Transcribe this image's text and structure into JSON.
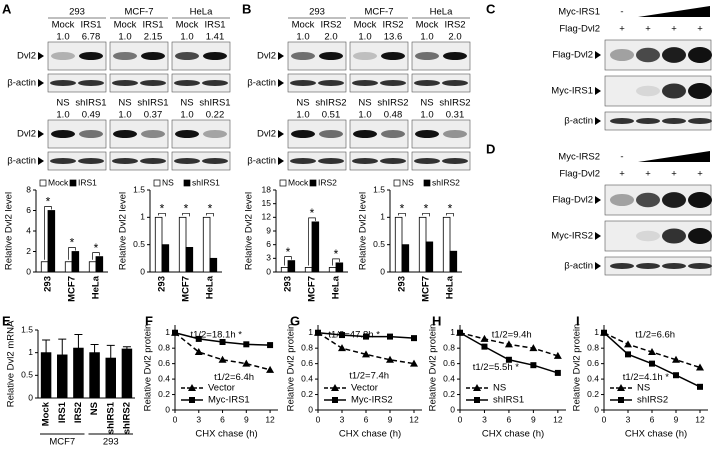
{
  "panels": {
    "A": {
      "label": "A",
      "blot1": {
        "groups": [
          {
            "name": "293",
            "lanes": [
              "Mock",
              "IRS1"
            ],
            "ratios": [
              "1.0",
              "6.78"
            ]
          },
          {
            "name": "MCF-7",
            "lanes": [
              "Mock",
              "IRS1"
            ],
            "ratios": [
              "1.0",
              "2.15"
            ]
          },
          {
            "name": "HeLa",
            "lanes": [
              "Mock",
              "IRS1"
            ],
            "ratios": [
              "1.0",
              "1.41"
            ]
          }
        ],
        "rows": [
          "Dvl2",
          "β-actin"
        ]
      },
      "blot2": {
        "groups": [
          {
            "lanes": [
              "NS",
              "shIRS1"
            ],
            "ratios": [
              "1.0",
              "0.49"
            ]
          },
          {
            "lanes": [
              "NS",
              "shIRS1"
            ],
            "ratios": [
              "1.0",
              "0.37"
            ]
          },
          {
            "lanes": [
              "NS",
              "shIRS1"
            ],
            "ratios": [
              "1.0",
              "0.22"
            ]
          }
        ],
        "rows": [
          "Dvl2",
          "β-actin"
        ]
      },
      "charts": [
        {
          "type": "bar",
          "ylabel": "Relative Dvl2 level",
          "categories": [
            "293",
            "MCF7",
            "HeLa"
          ],
          "series": [
            {
              "name": "Mock",
              "color": "#ffffff",
              "values": [
                1,
                1,
                1
              ]
            },
            {
              "name": "IRS1",
              "color": "#000000",
              "values": [
                6,
                2,
                1.5
              ]
            }
          ],
          "ylim": [
            0,
            8
          ],
          "yticks": [
            0,
            2,
            4,
            6,
            8
          ],
          "annotations": [
            "*",
            "*",
            "*"
          ]
        },
        {
          "type": "bar",
          "ylabel": "Relative Dvl2 level",
          "categories": [
            "293",
            "MCF7",
            "HeLa"
          ],
          "series": [
            {
              "name": "NS",
              "color": "#ffffff",
              "values": [
                1,
                1,
                1
              ]
            },
            {
              "name": "shIRS1",
              "color": "#000000",
              "values": [
                0.5,
                0.45,
                0.25
              ]
            }
          ],
          "ylim": [
            0,
            1.5
          ],
          "yticks": [
            0,
            0.5,
            1,
            1.5
          ],
          "annotations": [
            "*",
            "*",
            "*"
          ]
        }
      ]
    },
    "B": {
      "label": "B",
      "blot1": {
        "groups": [
          {
            "name": "293",
            "lanes": [
              "Mock",
              "IRS2"
            ],
            "ratios": [
              "1.0",
              "2.0"
            ]
          },
          {
            "name": "MCF-7",
            "lanes": [
              "Mock",
              "IRS2"
            ],
            "ratios": [
              "1.0",
              "13.6"
            ]
          },
          {
            "name": "HeLa",
            "lanes": [
              "Mock",
              "IRS2"
            ],
            "ratios": [
              "1.0",
              "2.0"
            ]
          }
        ],
        "rows": [
          "Dvl2",
          "β-actin"
        ]
      },
      "blot2": {
        "groups": [
          {
            "lanes": [
              "NS",
              "shIRS2"
            ],
            "ratios": [
              "1.0",
              "0.51"
            ]
          },
          {
            "lanes": [
              "NS",
              "shIRS2"
            ],
            "ratios": [
              "1.0",
              "0.48"
            ]
          },
          {
            "lanes": [
              "NS",
              "shIRS2"
            ],
            "ratios": [
              "1.0",
              "0.31"
            ]
          }
        ],
        "rows": [
          "Dvl2",
          "β-actin"
        ]
      },
      "charts": [
        {
          "type": "bar",
          "ylabel": "Relative Dvl2 level",
          "categories": [
            "293",
            "MCF7",
            "HeLa"
          ],
          "series": [
            {
              "name": "Mock",
              "color": "#ffffff",
              "values": [
                1,
                1,
                1
              ]
            },
            {
              "name": "IRS2",
              "color": "#000000",
              "values": [
                2.5,
                11,
                2
              ]
            }
          ],
          "ylim": [
            0,
            18
          ],
          "yticks": [
            0,
            3,
            6,
            9,
            12,
            15,
            18
          ],
          "annotations": [
            "*",
            "*",
            "*"
          ]
        },
        {
          "type": "bar",
          "ylabel": "Relative Dvl2 level",
          "categories": [
            "293",
            "MCF7",
            "HeLa"
          ],
          "series": [
            {
              "name": "NS",
              "color": "#ffffff",
              "values": [
                1,
                1,
                1
              ]
            },
            {
              "name": "shIRS2",
              "color": "#000000",
              "values": [
                0.5,
                0.55,
                0.38
              ]
            }
          ],
          "ylim": [
            0,
            1.5
          ],
          "yticks": [
            0,
            0.5,
            1,
            1.5
          ],
          "annotations": [
            "*",
            "*",
            "*"
          ]
        }
      ]
    },
    "C": {
      "label": "C",
      "treatment": {
        "name": "Myc-IRS1",
        "first": "-"
      },
      "flag": {
        "name": "Flag-Dvl2",
        "signs": [
          "+",
          "+",
          "+",
          "+"
        ]
      },
      "rows": [
        "Flag-Dvl2",
        "Myc-IRS1",
        "β-actin"
      ]
    },
    "D": {
      "label": "D",
      "treatment": {
        "name": "Myc-IRS2",
        "first": "-"
      },
      "flag": {
        "name": "Flag-Dvl2",
        "signs": [
          "+",
          "+",
          "+",
          "+"
        ]
      },
      "rows": [
        "Flag-Dvl2",
        "Myc-IRS2",
        "β-actin"
      ]
    },
    "E": {
      "label": "E",
      "chart": {
        "type": "bar",
        "ylabel": "Relative Dvl2 mRNA",
        "categories": [
          "Mock",
          "IRS1",
          "IRS2",
          "NS",
          "shIRS1",
          "shIRS2"
        ],
        "values": [
          1,
          0.95,
          1.1,
          1,
          0.88,
          1.08
        ],
        "errors": [
          0.28,
          0.35,
          0.3,
          0.18,
          0.28,
          0.05
        ],
        "color": "#000000",
        "ylim": [
          0,
          1.5
        ],
        "yticks": [
          0,
          0.5,
          1,
          1.5
        ],
        "groups": [
          "MCF7",
          "293"
        ]
      }
    },
    "F": {
      "label": "F",
      "chart": {
        "type": "line",
        "ylabel": "Relative Dvl2 protein",
        "xlabel": "CHX chase (h)",
        "x": [
          0,
          3,
          6,
          9,
          12
        ],
        "xlim": [
          0,
          13
        ],
        "xticks": [
          0,
          3,
          6,
          9,
          12
        ],
        "ylim": [
          0,
          1.1
        ],
        "yticks": [
          0,
          0.2,
          0.4,
          0.6,
          0.8,
          1
        ],
        "legend": "lower left",
        "series": [
          {
            "name": "Vector",
            "dash": true,
            "marker": "triangle",
            "values": [
              1,
              0.75,
              0.65,
              0.6,
              0.52
            ]
          },
          {
            "name": "Myc-IRS1",
            "dash": false,
            "marker": "square",
            "values": [
              1,
              0.92,
              0.88,
              0.85,
              0.84
            ]
          }
        ],
        "annotations": [
          "t1/2=18.1h *",
          "t1/2=6.4h"
        ]
      }
    },
    "G": {
      "label": "G",
      "chart": {
        "type": "line",
        "ylabel": "Relative Dvl2 protein",
        "xlabel": "CHX chase (h)",
        "x": [
          0,
          3,
          6,
          9,
          12
        ],
        "xlim": [
          0,
          13
        ],
        "xticks": [
          0,
          3,
          6,
          9,
          12
        ],
        "ylim": [
          0,
          1.1
        ],
        "yticks": [
          0,
          0.2,
          0.4,
          0.6,
          0.8,
          1
        ],
        "legend": "lower left",
        "series": [
          {
            "name": "Vector",
            "dash": true,
            "marker": "triangle",
            "values": [
              1,
              0.8,
              0.72,
              0.65,
              0.6
            ]
          },
          {
            "name": "Myc-IRS2",
            "dash": false,
            "marker": "square",
            "values": [
              1,
              0.97,
              0.95,
              0.95,
              0.93
            ]
          }
        ],
        "annotations": [
          "t1/2=47.8h *",
          "t1/2=7.4h"
        ]
      }
    },
    "H": {
      "label": "H",
      "chart": {
        "type": "line",
        "ylabel": "Relative Dvl2 protein",
        "xlabel": "CHX chase (h)",
        "x": [
          0,
          3,
          6,
          9,
          12
        ],
        "xlim": [
          0,
          13
        ],
        "xticks": [
          0,
          3,
          6,
          9,
          12
        ],
        "ylim": [
          0,
          1.1
        ],
        "yticks": [
          0,
          0.2,
          0.4,
          0.6,
          0.8,
          1
        ],
        "legend": "lower left",
        "series": [
          {
            "name": "NS",
            "dash": true,
            "marker": "triangle",
            "values": [
              1,
              0.92,
              0.85,
              0.8,
              0.7
            ]
          },
          {
            "name": "shIRS1",
            "dash": false,
            "marker": "square",
            "values": [
              1,
              0.82,
              0.65,
              0.58,
              0.48
            ]
          }
        ],
        "annotations": [
          "t1/2=9.4h",
          "t1/2=5.5h *"
        ]
      }
    },
    "I": {
      "label": "I",
      "chart": {
        "type": "line",
        "ylabel": "Relative Dvl2 protein",
        "xlabel": "CHX chase (h)",
        "x": [
          0,
          3,
          6,
          9,
          12
        ],
        "xlim": [
          0,
          13
        ],
        "xticks": [
          0,
          3,
          6,
          9,
          12
        ],
        "ylim": [
          0,
          1.1
        ],
        "yticks": [
          0,
          0.2,
          0.4,
          0.6,
          0.8,
          1
        ],
        "legend": "lower left",
        "series": [
          {
            "name": "NS",
            "dash": true,
            "marker": "triangle",
            "values": [
              1,
              0.85,
              0.75,
              0.65,
              0.55
            ]
          },
          {
            "name": "shIRS2",
            "dash": false,
            "marker": "square",
            "values": [
              1,
              0.72,
              0.6,
              0.45,
              0.3
            ]
          }
        ],
        "annotations": [
          "t1/2=6.6h",
          "t1/2=4.1h *"
        ]
      }
    }
  }
}
